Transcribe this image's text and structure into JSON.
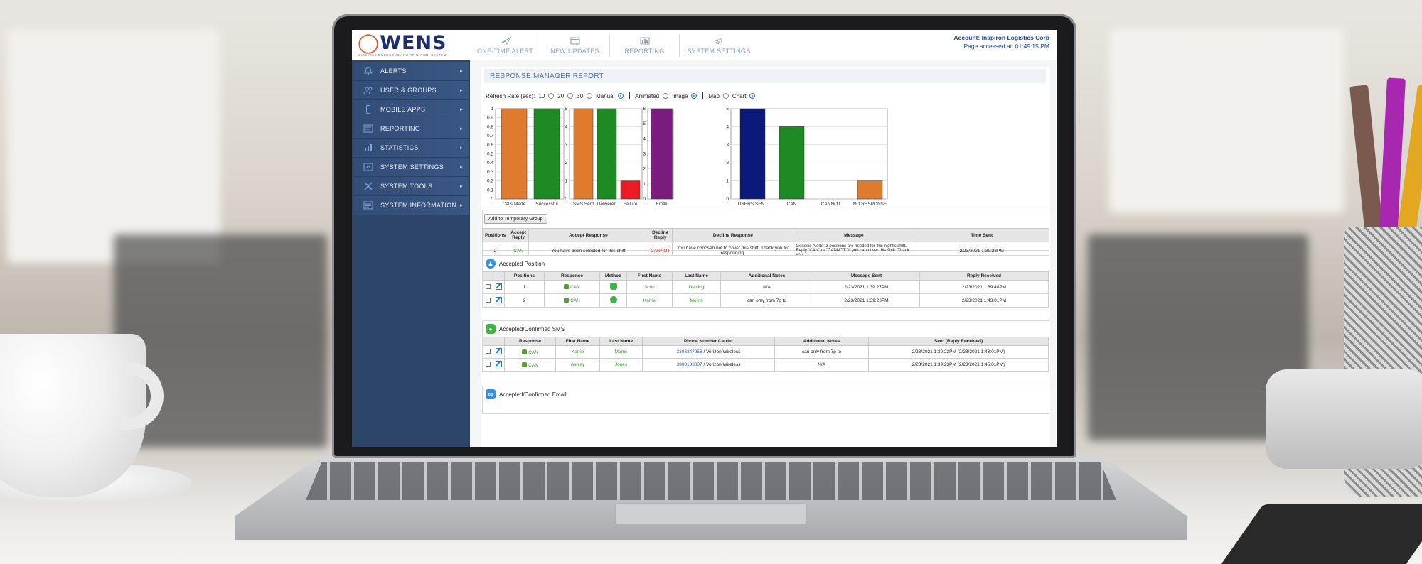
{
  "app": {
    "logo_text": "WENS",
    "logo_subtitle": "WIRELESS EMERGENCY NOTIFICATION SYSTEM",
    "account_label": "Account: Inspiron Logistics Corp",
    "page_accessed": "Page accessed at: 01:49:15 PM"
  },
  "topnav": [
    {
      "label": "ONE-TIME ALERT",
      "icon": "send-icon"
    },
    {
      "label": "NEW UPDATES",
      "icon": "window-icon"
    },
    {
      "label": "REPORTING",
      "icon": "report-icon"
    },
    {
      "label": "SYSTEM SETTINGS",
      "icon": "gear-icon"
    }
  ],
  "sidebar": {
    "items": [
      {
        "label": "ALERTS",
        "icon": "bell-icon"
      },
      {
        "label": "USER & GROUPS",
        "icon": "users-icon"
      },
      {
        "label": "MOBILE APPS",
        "icon": "mobile-icon"
      },
      {
        "label": "REPORTING",
        "icon": "report-icon"
      },
      {
        "label": "STATISTICS",
        "icon": "bar-chart-icon"
      },
      {
        "label": "SYSTEM SETTINGS",
        "icon": "settings-icon"
      },
      {
        "label": "SYSTEM TOOLS",
        "icon": "tools-icon"
      },
      {
        "label": "SYSTEM INFORMATION",
        "icon": "info-icon"
      }
    ],
    "arrow": "▸"
  },
  "report": {
    "title": "RESPONSE MANAGER REPORT",
    "refresh_label": "Refresh Rate (sec):",
    "refresh_options": [
      "10",
      "20",
      "30",
      "Manual"
    ],
    "refresh_selected": "Manual",
    "mode_options": [
      "Animated",
      "Image"
    ],
    "mode_selected": "Image",
    "view_options": [
      "Map",
      "Chart"
    ],
    "view_selected": "Chart",
    "add_temp_group": "Add to Temporary Group"
  },
  "chart_data": [
    {
      "type": "bar",
      "categories": [
        "Calls Made",
        "Successful"
      ],
      "values": [
        1,
        1
      ],
      "colors": [
        "#e07b2d",
        "#1e8a23"
      ],
      "ylim": [
        0,
        1
      ],
      "yticks": [
        "0",
        "0.1",
        "0.2",
        "0.3",
        "0.4",
        "0.5",
        "0.6",
        "0.7",
        "0.8",
        "0.9",
        "1"
      ]
    },
    {
      "type": "bar",
      "categories": [
        "SMS Sent",
        "Delivered",
        "Failure"
      ],
      "values": [
        5,
        5,
        1
      ],
      "colors": [
        "#e07b2d",
        "#1e8a23",
        "#ec1c24"
      ],
      "ylim": [
        0,
        5
      ],
      "yticks": [
        "0",
        "1",
        "2",
        "3",
        "4",
        "5"
      ]
    },
    {
      "type": "bar",
      "categories": [
        "Email"
      ],
      "values": [
        6
      ],
      "colors": [
        "#7c1b7e"
      ],
      "ylim": [
        0,
        6
      ],
      "yticks": [
        "0",
        "1",
        "2",
        "3",
        "4",
        "5",
        "6"
      ]
    },
    {
      "type": "bar",
      "categories": [
        "USERS SENT",
        "CAN",
        "CANNOT",
        "NO RESPONSE"
      ],
      "values": [
        5,
        4,
        0,
        1
      ],
      "colors": [
        "#0b1a7a",
        "#1e8a23",
        "#ec1c24",
        "#e07b2d"
      ],
      "ylim": [
        0,
        5
      ],
      "yticks": [
        "0",
        "1",
        "2",
        "3",
        "4",
        "5"
      ]
    }
  ],
  "summary": {
    "headers": [
      "Positions",
      "Accept Reply",
      "Accept Response",
      "Decline Reply",
      "Decline Response",
      "Message",
      "Time Sent"
    ],
    "row": {
      "positions": "2",
      "accept_reply": "CAN",
      "accept_response": "You have been selected for this shift",
      "decline_reply": "CANNOT",
      "decline_response": "You have choosen not to cover this shift. Thank you for responding.",
      "message": "Genesis Alerts: 3 positions are needed for this night's shift. Reply \"CAN\" or \"CANNOT\" if you can cover this shift. Thank you.",
      "time_sent": "2/23/2021 1:39:23PM"
    }
  },
  "accepted_position": {
    "title": "Accepted Position",
    "headers": [
      "Positions",
      "Response",
      "Method",
      "First Name",
      "Last Name",
      "Additional Notes",
      "Message Sent",
      "Reply Received"
    ],
    "rows": [
      {
        "position": "1",
        "response": "CAN",
        "method": "phone-icon",
        "first": "Scott",
        "last": "Deitling",
        "notes": "N/A",
        "sent": "2/23/2021 1:39:27PM",
        "received": "2/23/2021 1:39:48PM"
      },
      {
        "position": "2",
        "response": "CAN",
        "method": "sms-icon",
        "first": "Karrie",
        "last": "Morris",
        "notes": "can only from 7p to",
        "sent": "2/23/2021 1:39:23PM",
        "received": "2/23/2021 1:43:01PM"
      }
    ]
  },
  "accepted_sms": {
    "title": "Accepted/Confirmed SMS",
    "headers": [
      "Response",
      "First Name",
      "Last Name",
      "Phone Number Carrier",
      "Additional Notes",
      "Sent (Reply Received)"
    ],
    "rows": [
      {
        "response": "CAN",
        "first": "Karrie",
        "last": "Morris",
        "phone": "3308347958",
        "carrier": " / Verizon Wireless",
        "notes": "can only from 7p to",
        "sent": "2/23/2021 1:39:23PM (2/23/2021 1:43:01PM)"
      },
      {
        "response": "CAN",
        "first": "Ashley",
        "last": "Jones",
        "phone": "3308133007",
        "carrier": " / Verizon Wireless",
        "notes": "N/A",
        "sent": "2/23/2021 1:39:23PM (2/23/2021 1:45:01PM)"
      }
    ]
  },
  "accepted_email": {
    "title": "Accepted/Confirmed Email"
  }
}
